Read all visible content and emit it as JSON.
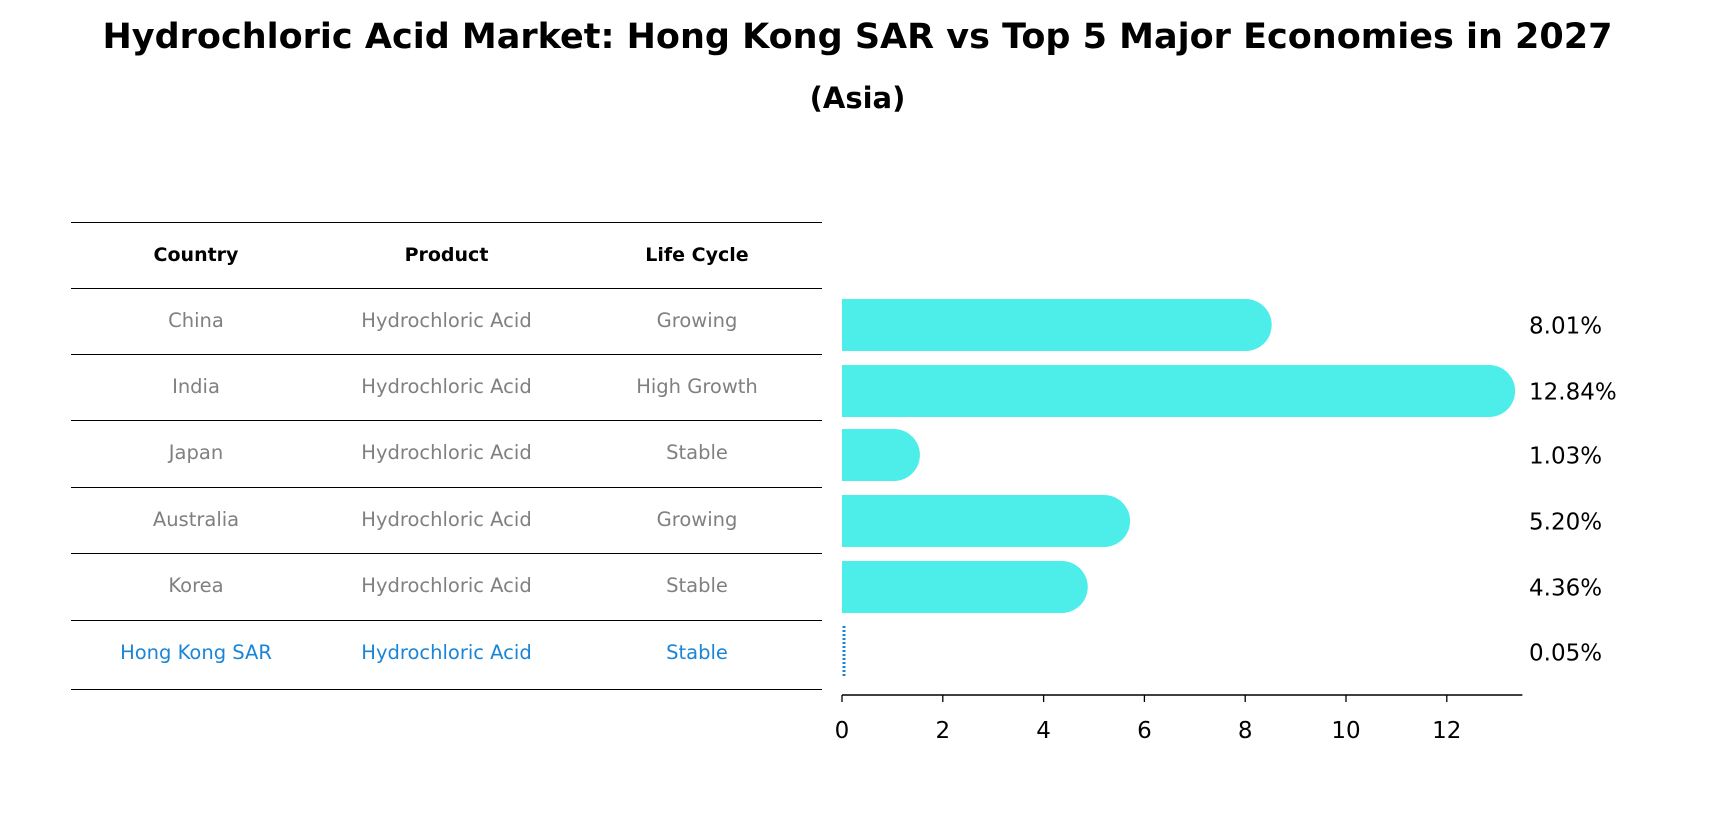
{
  "header": {
    "title": "Hydrochloric Acid Market: Hong Kong SAR vs Top 5 Major Economies in 2027",
    "subtitle": "(Asia)"
  },
  "table": {
    "columns": [
      "Country",
      "Product",
      "Life Cycle"
    ],
    "rows": [
      [
        "China",
        "Hydrochloric Acid",
        "Growing"
      ],
      [
        "India",
        "Hydrochloric Acid",
        "High Growth"
      ],
      [
        "Japan",
        "Hydrochloric Acid",
        "Stable"
      ],
      [
        "Australia",
        "Hydrochloric Acid",
        "Growing"
      ],
      [
        "Korea",
        "Hydrochloric Acid",
        "Stable"
      ],
      [
        "Hong Kong SAR",
        "Hydrochloric Acid",
        "Stable"
      ]
    ],
    "highlight_row": 5
  },
  "colors": {
    "bar": "#4DEEEA",
    "highlight": "#1A85D6",
    "row_text": "#808080",
    "axis": "#000000"
  },
  "chart_data": {
    "type": "bar",
    "orientation": "horizontal",
    "title": "Hydrochloric Acid Market: Hong Kong SAR vs Top 5 Major Economies in 2027",
    "subtitle": "(Asia)",
    "categories": [
      "China",
      "India",
      "Japan",
      "Australia",
      "Korea",
      "Hong Kong SAR"
    ],
    "values": [
      8.01,
      12.84,
      1.03,
      5.2,
      4.36,
      0.05
    ],
    "labels": [
      "8.01%",
      "12.84%",
      "1.03%",
      "5.20%",
      "4.36%",
      "0.05%"
    ],
    "xlim": [
      0,
      13.5
    ],
    "xticks": [
      0,
      2,
      4,
      6,
      8,
      10,
      12
    ],
    "xticklabels": [
      "0",
      "2",
      "4",
      "6",
      "8",
      "10",
      "12"
    ],
    "xlabel": "",
    "ylabel": "",
    "grid": false,
    "highlight_category": "Hong Kong SAR"
  }
}
